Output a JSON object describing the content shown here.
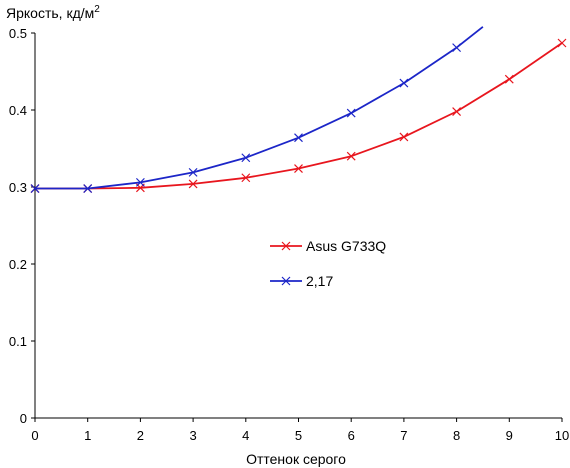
{
  "chart_data": {
    "type": "line",
    "ylabel": "Яркость, кд/м",
    "ylabel_superscript": "2",
    "xlabel": "Оттенок серого",
    "xlim": [
      0,
      10
    ],
    "ylim": [
      0,
      0.5
    ],
    "x_ticks": [
      "0",
      "1",
      "2",
      "3",
      "4",
      "5",
      "6",
      "7",
      "8",
      "9",
      "10"
    ],
    "y_ticks": [
      "0",
      "0.1",
      "0.2",
      "0.3",
      "0.4",
      "0.5"
    ],
    "grid": false,
    "legend_position": "center-right",
    "series": [
      {
        "name": "Asus G733Q",
        "color": "#e8161e",
        "marker": "x",
        "x": [
          0,
          1,
          2,
          3,
          4,
          5,
          6,
          7,
          8,
          9,
          10
        ],
        "y": [
          0.298,
          0.298,
          0.299,
          0.304,
          0.312,
          0.324,
          0.34,
          0.365,
          0.398,
          0.44,
          0.487
        ]
      },
      {
        "name": "2,17",
        "color": "#1c26c8",
        "marker": "x",
        "x": [
          0,
          1,
          2,
          3,
          4,
          5,
          6,
          7,
          8
        ],
        "y": [
          0.298,
          0.298,
          0.306,
          0.319,
          0.338,
          0.364,
          0.396,
          0.435,
          0.481
        ],
        "curve_to": [
          8.5,
          0.508
        ]
      }
    ]
  }
}
